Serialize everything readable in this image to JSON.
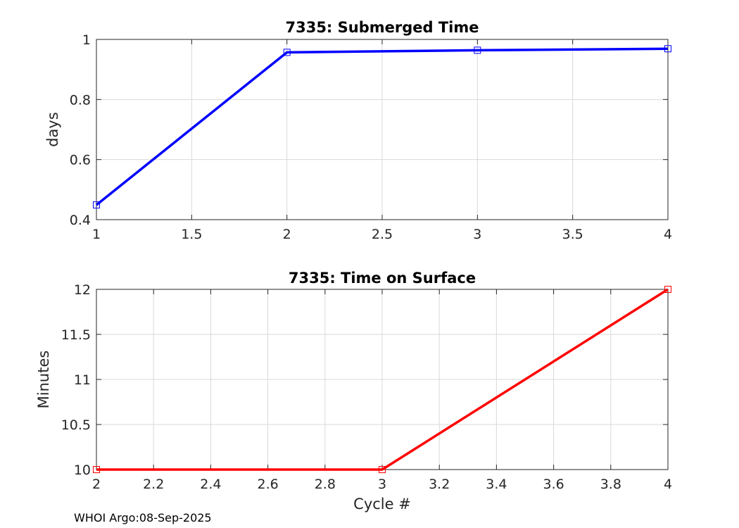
{
  "footer": "WHOI Argo:08-Sep-2025",
  "chart_data": [
    {
      "type": "line",
      "title": "7335: Submerged Time",
      "xlabel": "",
      "ylabel": "days",
      "xlim": [
        1,
        4
      ],
      "ylim": [
        0.4,
        1
      ],
      "xticks": [
        1,
        1.5,
        2,
        2.5,
        3,
        3.5,
        4
      ],
      "yticks": [
        0.4,
        0.6,
        0.8,
        1
      ],
      "xtick_labels": [
        "1",
        "1.5",
        "2",
        "2.5",
        "3",
        "3.5",
        "4"
      ],
      "ytick_labels": [
        "0.4",
        "0.6",
        "0.8",
        "1"
      ],
      "grid": true,
      "color": "#0000ff",
      "marker": "square",
      "series": [
        {
          "x": [
            1,
            2,
            3,
            4
          ],
          "y": [
            0.449,
            0.957,
            0.964,
            0.969
          ]
        }
      ]
    },
    {
      "type": "line",
      "title": "7335: Time on Surface",
      "xlabel": "Cycle #",
      "ylabel": "Minutes",
      "xlim": [
        2,
        4
      ],
      "ylim": [
        10,
        12
      ],
      "xticks": [
        2,
        2.2,
        2.4,
        2.6,
        2.8,
        3,
        3.2,
        3.4,
        3.6,
        3.8,
        4
      ],
      "yticks": [
        10,
        10.5,
        11,
        11.5,
        12
      ],
      "xtick_labels": [
        "2",
        "2.2",
        "2.4",
        "2.6",
        "2.8",
        "3",
        "3.2",
        "3.4",
        "3.6",
        "3.8",
        "4"
      ],
      "ytick_labels": [
        "10",
        "10.5",
        "11",
        "11.5",
        "12"
      ],
      "grid": true,
      "color": "#ff0000",
      "marker": "square",
      "series": [
        {
          "x": [
            2,
            3,
            4
          ],
          "y": [
            10,
            10,
            12
          ]
        }
      ]
    }
  ]
}
